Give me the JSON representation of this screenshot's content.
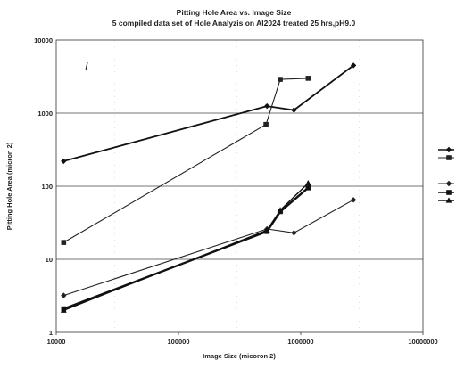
{
  "chart_data": {
    "type": "line",
    "title": "Pitting Hole Area vs. Image Size",
    "subtitle": "5 compiled data set of Hole Analyzis on Al2024 treated 25 hrs,pH9.0",
    "xlabel": "Image Size (micoron 2)",
    "ylabel": "Pitting Hole Area (micron 2)",
    "xscale": "log",
    "yscale": "log",
    "xlim": [
      10000,
      10000000
    ],
    "ylim": [
      1,
      10000
    ],
    "x_ticks": [
      "10000",
      "100000",
      "1000000",
      "10000000"
    ],
    "y_ticks": [
      "1",
      "10",
      "100",
      "1000",
      "10000"
    ],
    "grid": "horizontal",
    "legend_placement": "right",
    "series": [
      {
        "marker": "diamond",
        "line_width": 1.8,
        "color": "#111111",
        "points": [
          [
            11500,
            220
          ],
          [
            530000,
            1250
          ],
          [
            880000,
            1100
          ],
          [
            2700000,
            4500
          ]
        ]
      },
      {
        "marker": "square",
        "line_width": 1.1,
        "color": "#222222",
        "points": [
          [
            11500,
            17
          ],
          [
            520000,
            700
          ],
          [
            680000,
            2900
          ],
          [
            1150000,
            3000
          ]
        ]
      },
      {
        "marker": "diamond",
        "line_width": 1.1,
        "color": "#222222",
        "points": [
          [
            11500,
            3.2
          ],
          [
            530000,
            26
          ],
          [
            880000,
            23
          ],
          [
            2700000,
            65
          ]
        ]
      },
      {
        "marker": "square",
        "line_width": 2.4,
        "color": "#111111",
        "points": [
          [
            11500,
            2.1
          ],
          [
            530000,
            24
          ],
          [
            680000,
            45
          ],
          [
            1150000,
            95
          ]
        ]
      },
      {
        "marker": "triangle",
        "line_width": 1.4,
        "color": "#111111",
        "points": [
          [
            11500,
            2.0
          ],
          [
            530000,
            25
          ],
          [
            680000,
            47
          ],
          [
            1150000,
            110
          ]
        ]
      }
    ]
  }
}
